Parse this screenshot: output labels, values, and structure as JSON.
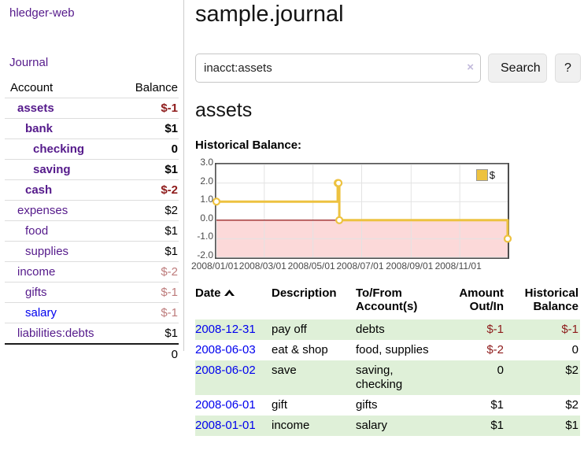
{
  "colors": {
    "link_purple": "#551a8b",
    "link_blue": "#0000ee",
    "negative_strong": "#8e1b1b",
    "negative_muted": "#bd7b7b",
    "row_stripe_green": "#dff0d8",
    "chart_line": "#edc240",
    "chart_negative_fill": "#fcd9d9",
    "chart_zero_line": "#8b0000",
    "chart_grid": "#e3e3e3",
    "chart_frame": "#4d4d4d"
  },
  "sidebar": {
    "brand": "hledger-web",
    "journal_link": "Journal",
    "account_col": "Account",
    "balance_col": "Balance",
    "accounts": [
      {
        "name": "assets",
        "level": 1,
        "balance": "$-1",
        "bold": true,
        "balance_tone": "negative-strong"
      },
      {
        "name": "bank",
        "level": 2,
        "balance": "$1",
        "bold": true,
        "balance_tone": "normal"
      },
      {
        "name": "checking",
        "level": 3,
        "balance": "0",
        "bold": true,
        "balance_tone": "normal"
      },
      {
        "name": "saving",
        "level": 3,
        "balance": "$1",
        "bold": true,
        "balance_tone": "normal"
      },
      {
        "name": "cash",
        "level": 2,
        "balance": "$-2",
        "bold": true,
        "balance_tone": "negative-strong"
      },
      {
        "name": "expenses",
        "level": 1,
        "balance": "$2",
        "bold": false,
        "balance_tone": "normal"
      },
      {
        "name": "food",
        "level": 2,
        "balance": "$1",
        "bold": false,
        "balance_tone": "normal"
      },
      {
        "name": "supplies",
        "level": 2,
        "balance": "$1",
        "bold": false,
        "balance_tone": "normal"
      },
      {
        "name": "income",
        "level": 1,
        "balance": "$-2",
        "bold": false,
        "balance_tone": "negative-muted"
      },
      {
        "name": "gifts",
        "level": 2,
        "balance": "$-1",
        "bold": false,
        "balance_tone": "negative-muted"
      },
      {
        "name": "salary",
        "level": 2,
        "balance": "$-1",
        "bold": false,
        "balance_tone": "negative-muted",
        "link_tone": "blue"
      },
      {
        "name": "liabilities:debts",
        "level": 1,
        "balance": "$1",
        "bold": false,
        "balance_tone": "normal"
      }
    ],
    "total": "0"
  },
  "main": {
    "title": "sample.journal",
    "search": {
      "value": "inacct:assets",
      "clear_icon": "×",
      "search_button": "Search",
      "help_button": "?"
    },
    "account_heading": "assets",
    "chart_title": "Historical Balance:"
  },
  "chart_data": {
    "type": "line",
    "step": true,
    "title": "Historical Balance:",
    "series": [
      {
        "name": "$",
        "x": [
          "2008-01-01",
          "2008-06-01",
          "2008-06-02",
          "2008-06-03",
          "2008-12-31"
        ],
        "y": [
          1,
          2,
          2,
          0,
          -1
        ]
      }
    ],
    "x_range": [
      "2008-01-01",
      "2008-12-31"
    ],
    "x_ticks": [
      {
        "date": "2008-01-01",
        "label": "2008/01/01"
      },
      {
        "date": "2008-03-01",
        "label": "2008/03/01"
      },
      {
        "date": "2008-05-01",
        "label": "2008/05/01"
      },
      {
        "date": "2008-07-01",
        "label": "2008/07/01"
      },
      {
        "date": "2008-09-01",
        "label": "2008/09/01"
      },
      {
        "date": "2008-11-01",
        "label": "2008/11/01"
      }
    ],
    "y_ticks": [
      3.0,
      2.0,
      1.0,
      0.0,
      -1.0,
      -2.0
    ],
    "y_tick_labels": [
      "3.0",
      "2.0",
      "1.0",
      "0.0",
      "-1.0",
      "-2.0"
    ],
    "ylim": [
      -2,
      3
    ],
    "grid": true,
    "negative_region_shaded": true,
    "legend_position": "top-right"
  },
  "register": {
    "columns": {
      "date": "Date",
      "description": "Description",
      "accounts": "To/From Account(s)",
      "amount": "Amount Out/In",
      "balance": "Historical Balance"
    },
    "sort_column": "date",
    "sort_direction": "ascending",
    "rows": [
      {
        "date": "2008-12-31",
        "description": "pay off",
        "accounts": "debts",
        "amount": "$-1",
        "balance": "$-1",
        "amount_tone": "negative",
        "balance_tone": "negative"
      },
      {
        "date": "2008-06-03",
        "description": "eat & shop",
        "accounts": "food, supplies",
        "amount": "$-2",
        "balance": "0",
        "amount_tone": "negative",
        "balance_tone": "normal"
      },
      {
        "date": "2008-06-02",
        "description": "save",
        "accounts": "saving, checking",
        "amount": "0",
        "balance": "$2",
        "amount_tone": "normal",
        "balance_tone": "normal"
      },
      {
        "date": "2008-06-01",
        "description": "gift",
        "accounts": "gifts",
        "amount": "$1",
        "balance": "$2",
        "amount_tone": "normal",
        "balance_tone": "normal"
      },
      {
        "date": "2008-01-01",
        "description": "income",
        "accounts": "salary",
        "amount": "$1",
        "balance": "$1",
        "amount_tone": "normal",
        "balance_tone": "normal"
      }
    ]
  }
}
